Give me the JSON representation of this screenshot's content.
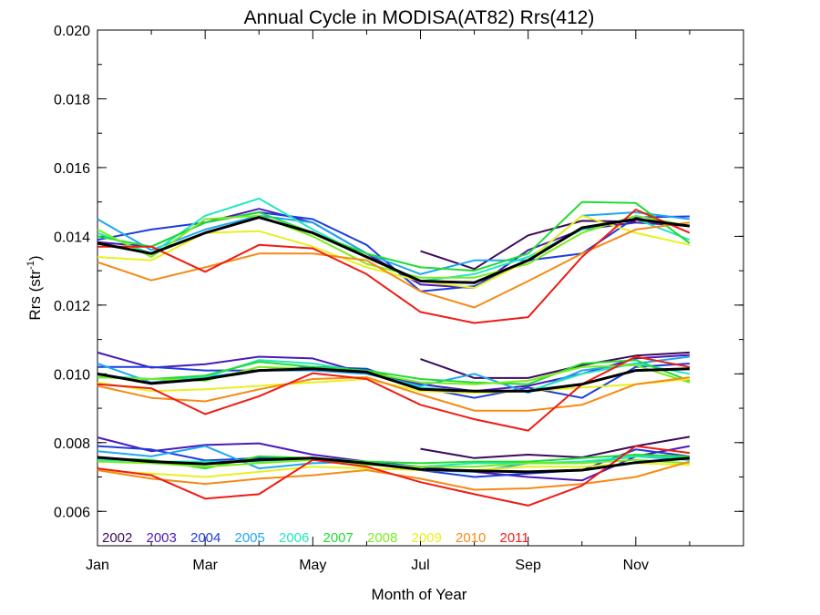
{
  "chart_data": {
    "type": "line",
    "title": "Annual Cycle in MODISA(AT82) Rrs(412)",
    "xlabel": "Month of Year",
    "ylabel": "Rrs (str",
    "ylabel_sup": "-1",
    "ylabel_tail": ")",
    "xlim": [
      1,
      13
    ],
    "ylim": [
      0.005,
      0.02
    ],
    "x_ticks": [
      {
        "value": 1,
        "label": "Jan"
      },
      {
        "value": 3,
        "label": "Mar"
      },
      {
        "value": 5,
        "label": "May"
      },
      {
        "value": 7,
        "label": "Jul"
      },
      {
        "value": 9,
        "label": "Sep"
      },
      {
        "value": 11,
        "label": "Nov"
      }
    ],
    "y_ticks": [
      {
        "value": 0.006,
        "label": "0.006"
      },
      {
        "value": 0.008,
        "label": "0.008"
      },
      {
        "value": 0.01,
        "label": "0.010"
      },
      {
        "value": 0.012,
        "label": "0.012"
      },
      {
        "value": 0.014,
        "label": "0.014"
      },
      {
        "value": 0.016,
        "label": "0.016"
      },
      {
        "value": 0.018,
        "label": "0.018"
      },
      {
        "value": 0.02,
        "label": "0.020"
      }
    ],
    "x": [
      1,
      2,
      3,
      4,
      5,
      6,
      7,
      8,
      9,
      10,
      11,
      12
    ],
    "grid": false,
    "legend_position": "bottom-left",
    "series": [
      {
        "name": "2002",
        "color": "#3d0a5a",
        "groups": [
          [
            null,
            null,
            null,
            null,
            null,
            null,
            0.01357,
            0.01305,
            0.01403,
            0.01445,
            0.01443,
            null
          ],
          [
            null,
            null,
            null,
            null,
            null,
            null,
            0.01043,
            0.00988,
            0.00988,
            0.01025,
            0.01053,
            0.01062
          ],
          [
            null,
            null,
            null,
            null,
            null,
            null,
            0.00782,
            0.00755,
            0.00765,
            0.00757,
            0.0079,
            0.00817
          ]
        ]
      },
      {
        "name": "2003",
        "color": "#4a1ab8",
        "groups": [
          [
            0.01383,
            0.0137,
            0.0144,
            0.0148,
            0.0144,
            0.0135,
            0.0126,
            0.0125,
            0.0136,
            0.0142,
            0.0144,
            0.0143
          ],
          [
            0.01062,
            0.01018,
            0.01028,
            0.0105,
            0.01045,
            0.01,
            0.0097,
            0.0095,
            0.00965,
            0.01,
            0.01045,
            0.01055
          ],
          [
            0.00815,
            0.00775,
            0.00793,
            0.00798,
            0.00765,
            0.00745,
            0.0073,
            0.00715,
            0.007,
            0.0069,
            0.0076,
            0.0079
          ]
        ]
      },
      {
        "name": "2004",
        "color": "#1e3cdc",
        "groups": [
          [
            0.0139,
            0.0142,
            0.0144,
            0.0147,
            0.0145,
            0.01375,
            0.0124,
            0.01255,
            0.0133,
            0.0135,
            0.01455,
            0.01458
          ],
          [
            0.0102,
            0.0102,
            0.0101,
            0.0101,
            0.0102,
            0.01015,
            0.0096,
            0.0093,
            0.0096,
            0.0093,
            0.0102,
            0.0103
          ],
          [
            0.0079,
            0.0078,
            0.00748,
            0.00755,
            0.00755,
            0.0074,
            0.0072,
            0.007,
            0.0071,
            0.0072,
            0.0078,
            0.0076
          ]
        ]
      },
      {
        "name": "2005",
        "color": "#1ea8f0",
        "groups": [
          [
            0.0145,
            0.0136,
            0.0142,
            0.0146,
            0.0144,
            0.0135,
            0.0129,
            0.0133,
            0.0133,
            0.0146,
            0.0147,
            0.0145
          ],
          [
            0.0103,
            0.00975,
            0.0099,
            0.0101,
            0.0101,
            0.01,
            0.00965,
            0.01,
            0.00945,
            0.0101,
            0.0103,
            0.0105
          ],
          [
            0.00775,
            0.0076,
            0.0079,
            0.00725,
            0.0074,
            0.00745,
            0.0072,
            0.00715,
            0.0074,
            0.0074,
            0.0076,
            0.0075
          ]
        ]
      },
      {
        "name": "2006",
        "color": "#22e6c0",
        "groups": [
          [
            0.0141,
            0.0135,
            0.0146,
            0.0151,
            0.0142,
            0.0134,
            0.0127,
            0.0129,
            0.0134,
            0.0142,
            0.0145,
            0.0139
          ],
          [
            0.00995,
            0.00985,
            0.0099,
            0.0104,
            0.0103,
            0.01005,
            0.0096,
            0.0095,
            0.0095,
            0.01,
            0.0103,
            0.01
          ],
          [
            0.0075,
            0.00745,
            0.00745,
            0.00745,
            0.00755,
            0.0074,
            0.0073,
            0.0074,
            0.0074,
            0.00745,
            0.0076,
            0.00755
          ]
        ]
      },
      {
        "name": "2007",
        "color": "#20dc32",
        "groups": [
          [
            0.014,
            0.0137,
            0.0144,
            0.0147,
            0.0141,
            0.0135,
            0.0131,
            0.013,
            0.0135,
            0.015,
            0.01497,
            0.0138
          ],
          [
            0.0099,
            0.00985,
            0.00995,
            0.01035,
            0.0102,
            0.0101,
            0.00985,
            0.00975,
            0.0097,
            0.0103,
            0.0104,
            0.0098
          ],
          [
            0.00755,
            0.0075,
            0.00725,
            0.0076,
            0.00755,
            0.00745,
            0.0074,
            0.00745,
            0.00745,
            0.00755,
            0.00765,
            0.0076
          ]
        ]
      },
      {
        "name": "2008",
        "color": "#7aec1e",
        "groups": [
          [
            0.0142,
            0.0134,
            0.0145,
            0.0146,
            0.014,
            0.0132,
            0.0128,
            0.0128,
            0.0132,
            0.0141,
            0.0146,
            0.0143
          ],
          [
            0.0099,
            0.00985,
            0.0098,
            0.0102,
            0.01015,
            0.01005,
            0.00975,
            0.0097,
            0.0098,
            0.0102,
            0.01025,
            0.00975
          ],
          [
            0.00745,
            0.0074,
            0.0073,
            0.0074,
            0.0075,
            0.00735,
            0.0073,
            0.0073,
            0.0074,
            0.0074,
            0.0075,
            0.0074
          ]
        ]
      },
      {
        "name": "2009",
        "color": "#e8f01e",
        "groups": [
          [
            0.0134,
            0.0133,
            0.0141,
            0.01415,
            0.0137,
            0.0131,
            0.0127,
            0.0125,
            0.0133,
            0.0146,
            0.0141,
            0.01375
          ],
          [
            0.00975,
            0.0095,
            0.00955,
            0.00965,
            0.00975,
            0.00985,
            0.0095,
            0.00945,
            0.0095,
            0.0096,
            0.0097,
            0.00985
          ],
          [
            0.0072,
            0.0071,
            0.007,
            0.00715,
            0.0073,
            0.00725,
            0.0072,
            0.0072,
            0.0073,
            0.0073,
            0.0074,
            0.00735
          ]
        ]
      },
      {
        "name": "2010",
        "color": "#f58a14",
        "groups": [
          [
            0.01325,
            0.01272,
            0.0131,
            0.0135,
            0.0135,
            0.0133,
            0.0124,
            0.01193,
            0.0127,
            0.0135,
            0.0142,
            0.0144
          ],
          [
            0.00965,
            0.0093,
            0.0092,
            0.00955,
            0.00985,
            0.0099,
            0.0094,
            0.00893,
            0.00893,
            0.0091,
            0.0097,
            0.0099
          ],
          [
            0.0072,
            0.00695,
            0.0068,
            0.00695,
            0.00705,
            0.0072,
            0.00695,
            0.00663,
            0.00667,
            0.0068,
            0.007,
            0.00745
          ]
        ]
      },
      {
        "name": "2011",
        "color": "#ee1c14",
        "groups": [
          [
            0.0137,
            0.0137,
            0.01297,
            0.01375,
            0.01365,
            0.0129,
            0.0118,
            0.01148,
            0.01165,
            0.0134,
            0.01478,
            0.0141
          ],
          [
            0.0097,
            0.00958,
            0.00883,
            0.00935,
            0.01002,
            0.00985,
            0.0091,
            0.00868,
            0.00835,
            0.0097,
            0.0105,
            0.0102
          ],
          [
            0.00725,
            0.00705,
            0.00637,
            0.0065,
            0.0075,
            0.0073,
            0.00685,
            0.0065,
            0.00617,
            0.00675,
            0.0079,
            0.0077
          ]
        ]
      },
      {
        "name": "",
        "color": "#000000",
        "is_mean": true,
        "groups": [
          [
            0.0138,
            0.0135,
            0.0141,
            0.01455,
            0.0141,
            0.0134,
            0.0127,
            0.01265,
            0.0133,
            0.01425,
            0.0145,
            0.0143
          ],
          [
            0.01,
            0.00972,
            0.00985,
            0.0101,
            0.01015,
            0.01005,
            0.00955,
            0.0095,
            0.0095,
            0.0097,
            0.0101,
            0.01015
          ],
          [
            0.00757,
            0.00745,
            0.00738,
            0.0075,
            0.00755,
            0.0074,
            0.00722,
            0.00718,
            0.00715,
            0.0072,
            0.00742,
            0.00755
          ]
        ]
      }
    ]
  }
}
